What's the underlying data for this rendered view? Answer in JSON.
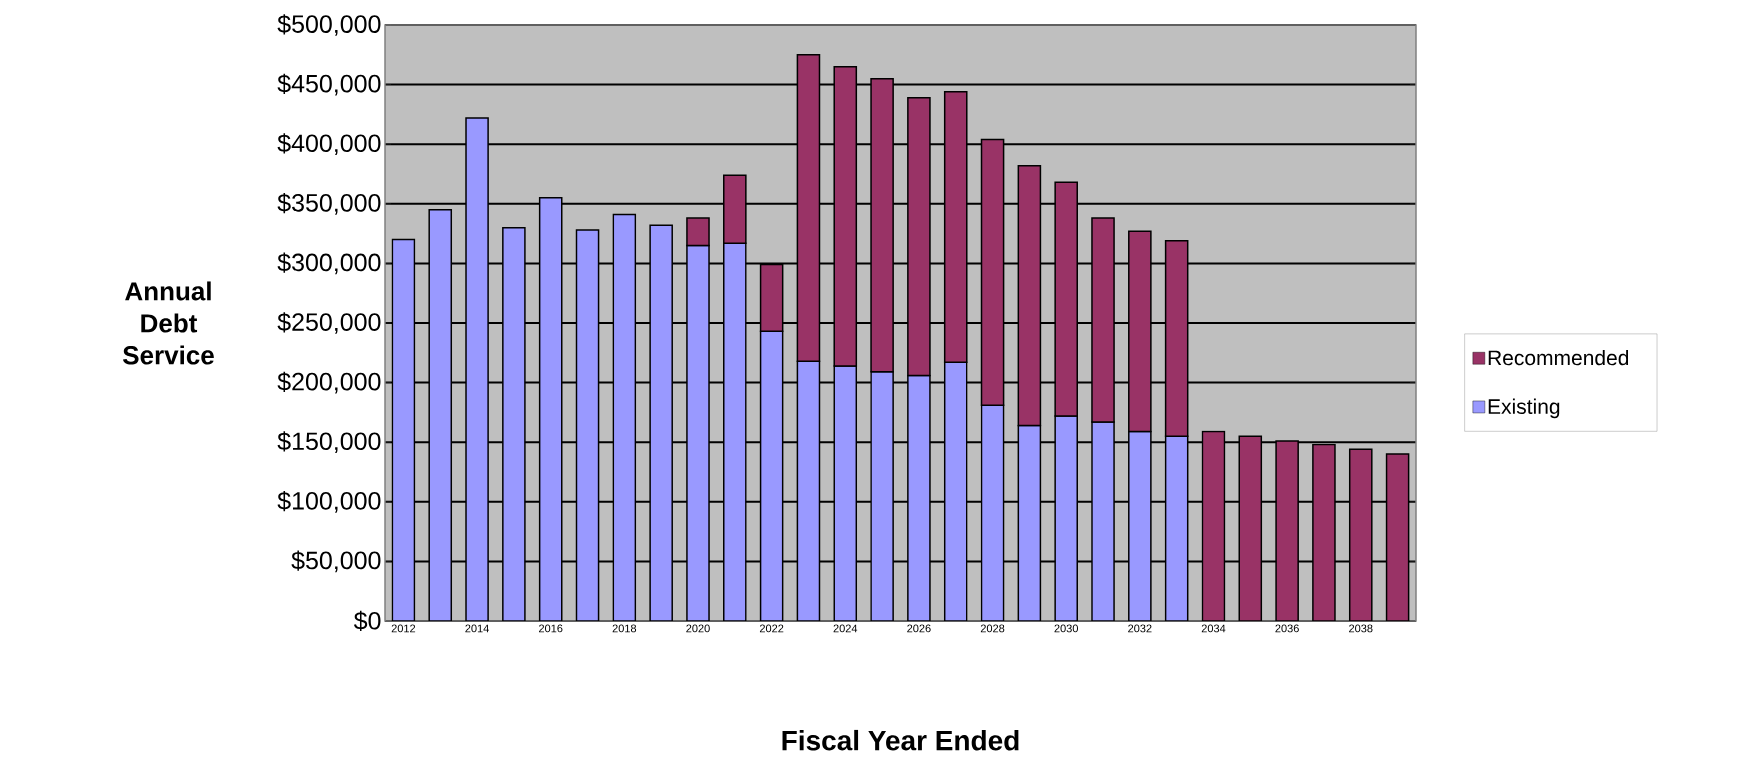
{
  "chart_data": {
    "type": "bar",
    "stacked": true,
    "xlabel": "Fiscal Year Ended",
    "ylabel": "Annual Debt Service",
    "categories": [
      "2012",
      null,
      "2014",
      null,
      "2016",
      null,
      "2018",
      null,
      "2020",
      null,
      "2022",
      null,
      "2024",
      null,
      "2026",
      null,
      "2028",
      null,
      "2030",
      null,
      "2032",
      null,
      "2034",
      null,
      "2036",
      null,
      "2038",
      null
    ],
    "series": [
      {
        "name": "Existing",
        "color": "#9999ff",
        "values": [
          320000,
          345000,
          422000,
          330000,
          355000,
          328000,
          341000,
          332000,
          315000,
          317000,
          243000,
          218000,
          214000,
          209000,
          206000,
          217000,
          181000,
          164000,
          172000,
          167000,
          159000,
          155000,
          null,
          null,
          null,
          null,
          null,
          null
        ]
      },
      {
        "name": "Recommended",
        "color": "#993366",
        "values": [
          null,
          null,
          null,
          null,
          null,
          null,
          null,
          null,
          23000,
          57000,
          56000,
          257000,
          251000,
          246000,
          233000,
          227000,
          223000,
          218000,
          196000,
          171000,
          168000,
          164000,
          159000,
          155000,
          151000,
          148000,
          144000,
          140000
        ]
      }
    ],
    "ylim": [
      0,
      500000
    ],
    "yticks": [
      {
        "value": 0,
        "label": "$0"
      },
      {
        "value": 50000,
        "label": "$50,000"
      },
      {
        "value": 100000,
        "label": "$100,000"
      },
      {
        "value": 150000,
        "label": "$150,000"
      },
      {
        "value": 200000,
        "label": "$200,000"
      },
      {
        "value": 250000,
        "label": "$250,000"
      },
      {
        "value": 300000,
        "label": "$300,000"
      },
      {
        "value": 350000,
        "label": "$350,000"
      },
      {
        "value": 400000,
        "label": "$400,000"
      },
      {
        "value": 450000,
        "label": "$450,000"
      },
      {
        "value": 500000,
        "label": "$500,000"
      }
    ],
    "grid": "y",
    "legend": "right"
  }
}
